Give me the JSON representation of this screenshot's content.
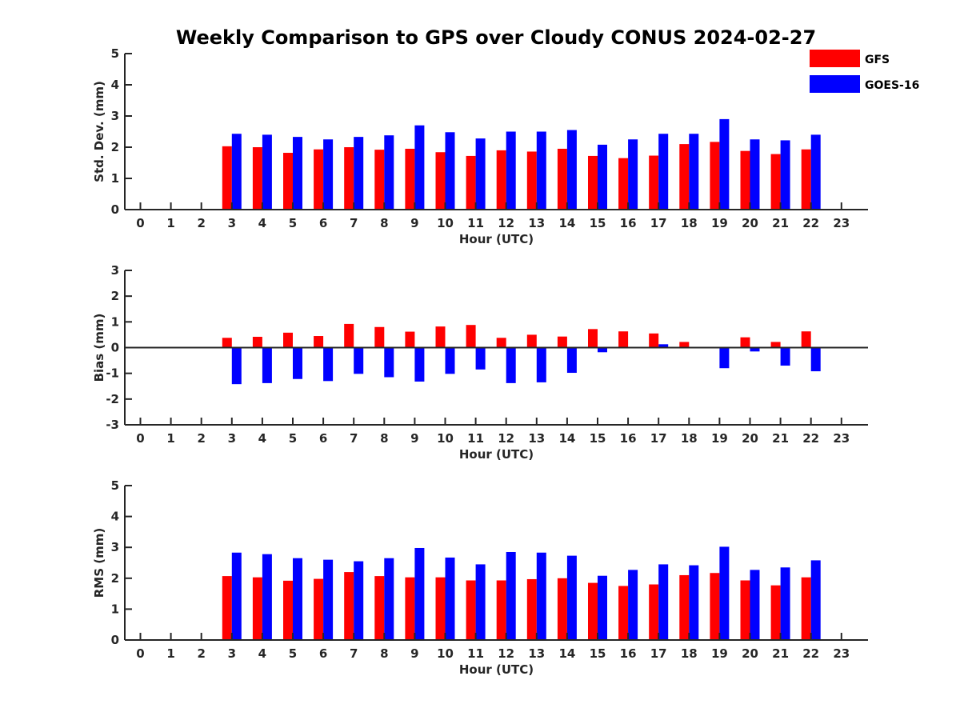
{
  "title": "Weekly Comparison to GPS over Cloudy CONUS 2024-02-27",
  "legend": {
    "placement": "top-right",
    "items": [
      {
        "name": "GFS",
        "color": "#ff0000"
      },
      {
        "name": "GOES-16",
        "color": "#0000ff"
      }
    ]
  },
  "chart_data": [
    {
      "type": "bar",
      "xlabel": "Hour (UTC)",
      "ylabel": "Std. Dev. (mm)",
      "ylim": [
        0,
        5
      ],
      "yticks": [
        "0",
        "1",
        "2",
        "3",
        "4",
        "5"
      ],
      "categories": [
        "0",
        "1",
        "2",
        "3",
        "4",
        "5",
        "6",
        "7",
        "8",
        "9",
        "10",
        "11",
        "12",
        "13",
        "14",
        "15",
        "16",
        "17",
        "18",
        "19",
        "20",
        "21",
        "22",
        "23"
      ],
      "series": [
        {
          "name": "GFS",
          "color": "#ff0000",
          "values": [
            null,
            null,
            null,
            2.03,
            2.0,
            1.82,
            1.93,
            2.0,
            1.92,
            1.95,
            1.84,
            1.72,
            1.9,
            1.86,
            1.95,
            1.72,
            1.65,
            1.73,
            2.1,
            2.17,
            1.88,
            1.78,
            1.93,
            null
          ]
        },
        {
          "name": "GOES-16",
          "color": "#0000ff",
          "values": [
            null,
            null,
            null,
            2.43,
            2.4,
            2.33,
            2.25,
            2.33,
            2.38,
            2.7,
            2.48,
            2.28,
            2.5,
            2.5,
            2.55,
            2.08,
            2.25,
            2.43,
            2.43,
            2.9,
            2.25,
            2.22,
            2.4,
            null
          ]
        }
      ]
    },
    {
      "type": "bar",
      "xlabel": "Hour (UTC)",
      "ylabel": "Bias (mm)",
      "ylim": [
        -3,
        3
      ],
      "yticks": [
        "-3",
        "-2",
        "-1",
        "0",
        "1",
        "2",
        "3"
      ],
      "zero_line": true,
      "categories": [
        "0",
        "1",
        "2",
        "3",
        "4",
        "5",
        "6",
        "7",
        "8",
        "9",
        "10",
        "11",
        "12",
        "13",
        "14",
        "15",
        "16",
        "17",
        "18",
        "19",
        "20",
        "21",
        "22",
        "23"
      ],
      "series": [
        {
          "name": "GFS",
          "color": "#ff0000",
          "values": [
            null,
            null,
            null,
            0.38,
            0.42,
            0.58,
            0.45,
            0.92,
            0.8,
            0.62,
            0.82,
            0.88,
            0.38,
            0.5,
            0.43,
            0.72,
            0.63,
            0.55,
            0.22,
            0.0,
            0.4,
            0.22,
            0.63,
            null
          ]
        },
        {
          "name": "GOES-16",
          "color": "#0000ff",
          "values": [
            null,
            null,
            null,
            -1.42,
            -1.38,
            -1.22,
            -1.3,
            -1.02,
            -1.15,
            -1.32,
            -1.02,
            -0.85,
            -1.38,
            -1.35,
            -0.98,
            -0.18,
            0.03,
            0.13,
            -0.03,
            -0.8,
            -0.15,
            -0.7,
            -0.92,
            null
          ]
        }
      ]
    },
    {
      "type": "bar",
      "xlabel": "Hour (UTC)",
      "ylabel": "RMS (mm)",
      "ylim": [
        0,
        5
      ],
      "yticks": [
        "0",
        "1",
        "2",
        "3",
        "4",
        "5"
      ],
      "categories": [
        "0",
        "1",
        "2",
        "3",
        "4",
        "5",
        "6",
        "7",
        "8",
        "9",
        "10",
        "11",
        "12",
        "13",
        "14",
        "15",
        "16",
        "17",
        "18",
        "19",
        "20",
        "21",
        "22",
        "23"
      ],
      "series": [
        {
          "name": "GFS",
          "color": "#ff0000",
          "values": [
            null,
            null,
            null,
            2.07,
            2.03,
            1.92,
            1.98,
            2.2,
            2.07,
            2.03,
            2.03,
            1.93,
            1.93,
            1.97,
            2.0,
            1.85,
            1.75,
            1.8,
            2.1,
            2.17,
            1.93,
            1.77,
            2.03,
            null
          ]
        },
        {
          "name": "GOES-16",
          "color": "#0000ff",
          "values": [
            null,
            null,
            null,
            2.83,
            2.78,
            2.65,
            2.6,
            2.55,
            2.65,
            2.98,
            2.67,
            2.45,
            2.85,
            2.83,
            2.73,
            2.08,
            2.27,
            2.45,
            2.42,
            3.02,
            2.27,
            2.35,
            2.58,
            null
          ]
        }
      ]
    }
  ]
}
